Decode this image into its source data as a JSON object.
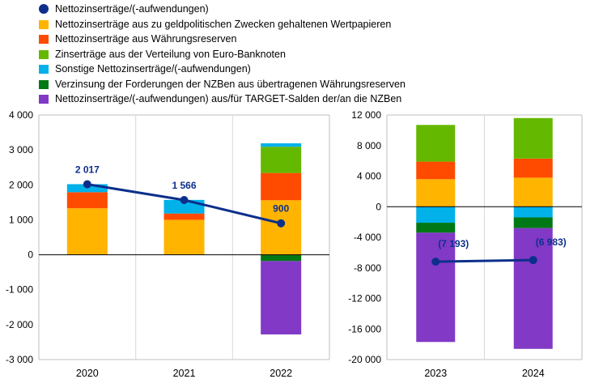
{
  "legend": [
    {
      "label": "Nettozinserträge/(-aufwendungen)",
      "color": "#0d2f8c",
      "marker": "dot"
    },
    {
      "label": "Nettozinserträge aus zu geldpolitischen Zwecken gehaltenen Wertpapieren",
      "color": "#ffb400",
      "marker": "box"
    },
    {
      "label": "Nettozinserträge aus Währungsreserven",
      "color": "#ff4b00",
      "marker": "box"
    },
    {
      "label": "Zinserträge aus der Verteilung von Euro-Banknoten",
      "color": "#65b800",
      "marker": "box"
    },
    {
      "label": "Sonstige Nettozinserträge/(-aufwendungen)",
      "color": "#00b1ea",
      "marker": "box"
    },
    {
      "label": "Verzinsung der Forderungen der NZBen aus übertragenen Währungsreserven",
      "color": "#007816",
      "marker": "box"
    },
    {
      "label": "Nettozinserträge/(-aufwendungen) aus/für TARGET-Salden der/an die NZBen",
      "color": "#8139c6",
      "marker": "box"
    }
  ],
  "chart_data": [
    {
      "type": "bar",
      "stacked": true,
      "categories": [
        "2020",
        "2021",
        "2022"
      ],
      "ylim": [
        -3000,
        4000
      ],
      "yticks": [
        -3000,
        -2000,
        -1000,
        0,
        1000,
        2000,
        3000,
        4000
      ],
      "ytick_labels": [
        "-3 000",
        "-2 000",
        "-1 000",
        "0",
        "1 000",
        "2 000",
        "3 000",
        "4 000"
      ],
      "grid": "vertical",
      "series": [
        {
          "name": "Nettozinserträge aus zu geldpolitischen Zwecken gehaltenen Wertpapieren",
          "color": "#ffb400",
          "values": [
            1330,
            1000,
            1560
          ]
        },
        {
          "name": "Nettozinserträge aus Währungsreserven",
          "color": "#ff4b00",
          "values": [
            460,
            180,
            780
          ]
        },
        {
          "name": "Zinserträge aus der Verteilung von Euro-Banknoten",
          "color": "#65b800",
          "values": [
            0,
            0,
            750
          ]
        },
        {
          "name": "Sonstige Nettozinserträge/(-aufwendungen)",
          "color": "#00b1ea",
          "values": [
            230,
            390,
            100
          ]
        },
        {
          "name": "Verzinsung der Forderungen der NZBen aus übertragenen Währungsreserven",
          "color": "#007816",
          "values": [
            -10,
            -10,
            -180
          ]
        },
        {
          "name": "Nettozinserträge/(-aufwendungen) aus/für TARGET-Salden der/an die NZBen",
          "color": "#8139c6",
          "values": [
            0,
            0,
            -2100
          ]
        }
      ],
      "line": {
        "name": "Nettozinserträge/(-aufwendungen)",
        "color": "#0d2f8c",
        "values": [
          2017,
          1566,
          900
        ],
        "labels": [
          "2 017",
          "1 566",
          "900"
        ]
      }
    },
    {
      "type": "bar",
      "stacked": true,
      "categories": [
        "2023",
        "2024"
      ],
      "ylim": [
        -20000,
        12000
      ],
      "yticks": [
        -20000,
        -16000,
        -12000,
        -8000,
        -4000,
        0,
        4000,
        8000,
        12000
      ],
      "ytick_labels": [
        "-20 000",
        "-16 000",
        "-12 000",
        "-8 000",
        "-4 000",
        "0",
        "4 000",
        "8 000",
        "12 000"
      ],
      "grid": "vertical",
      "series": [
        {
          "name": "Nettozinserträge aus zu geldpolitischen Zwecken gehaltenen Wertpapieren",
          "color": "#ffb400",
          "values": [
            3600,
            3800
          ]
        },
        {
          "name": "Nettozinserträge aus Währungsreserven",
          "color": "#ff4b00",
          "values": [
            2300,
            2500
          ]
        },
        {
          "name": "Zinserträge aus der Verteilung von Euro-Banknoten",
          "color": "#65b800",
          "values": [
            4800,
            5300
          ]
        },
        {
          "name": "Sonstige Nettozinserträge/(-aufwendungen)",
          "color": "#00b1ea",
          "values": [
            -2100,
            -1400
          ]
        },
        {
          "name": "Verzinsung der Forderungen der NZBen aus übertragenen Währungsreserven",
          "color": "#007816",
          "values": [
            -1300,
            -1400
          ]
        },
        {
          "name": "Nettozinserträge/(-aufwendungen) aus/für TARGET-Salden der/an die NZBen",
          "color": "#8139c6",
          "values": [
            -14300,
            -15800
          ]
        }
      ],
      "line": {
        "name": "Nettozinserträge/(-aufwendungen)",
        "color": "#0d2f8c",
        "values": [
          -7193,
          -6983
        ],
        "labels": [
          "(7 193)",
          "(6 983)"
        ]
      }
    }
  ]
}
